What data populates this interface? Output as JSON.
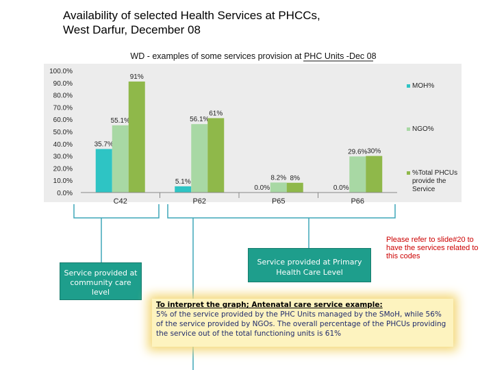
{
  "page": {
    "title_line1": "Availability of selected Health Services at PHCCs,",
    "title_line2": "West Darfur, December 08"
  },
  "chart_data": {
    "type": "bar",
    "title": "WD - examples of some services provision at PHC Units -Dec 08",
    "categories": [
      "C42",
      "P62",
      "P65",
      "P66"
    ],
    "series": [
      {
        "name": "MOH%",
        "values": [
          35.7,
          5.1,
          0.0,
          0.0
        ],
        "labels": [
          "35.7%",
          "5.1%",
          "0.0%",
          "0.0%"
        ],
        "color": "#2ec4c4"
      },
      {
        "name": "NGO%",
        "values": [
          55.1,
          56.1,
          8.2,
          29.6
        ],
        "labels": [
          "55.1%",
          "56.1%",
          "8.2%",
          "29.6%"
        ],
        "color": "#a8d8a4"
      },
      {
        "name": "%Total PHCUs provide the Service",
        "values": [
          91,
          61,
          8,
          30
        ],
        "labels": [
          "91%",
          "61%",
          "8%",
          "30%"
        ],
        "color": "#8fb84a"
      }
    ],
    "ylim": [
      0,
      100
    ],
    "yticks": [
      "0.0%",
      "10.0%",
      "20.0%",
      "30.0%",
      "40.0%",
      "50.0%",
      "60.0%",
      "70.0%",
      "80.0%",
      "90.0%",
      "100.0%"
    ],
    "legend_position": "right",
    "grid": false
  },
  "annotations": {
    "community": "Service provided at community care level",
    "primary": "Service provided at Primary Health Care Level",
    "refer": "Please refer to slide#20 to have the services related to this codes",
    "interpret_head": "To interpret the graph; Antenatal care service example:",
    "interpret_body": "5% of the service provided by the PHC Units managed by the SMoH, while 56% of the service provided  by NGOs. The overall percentage of the PHCUs providing the service out of the total functioning units is 61%"
  },
  "colors": {
    "panel_bg": "#ececec",
    "box_teal": "#1e9e8c",
    "bracket": "#3da6b8",
    "refer_red": "#cc0000",
    "highlight": "#fdf3bf"
  }
}
